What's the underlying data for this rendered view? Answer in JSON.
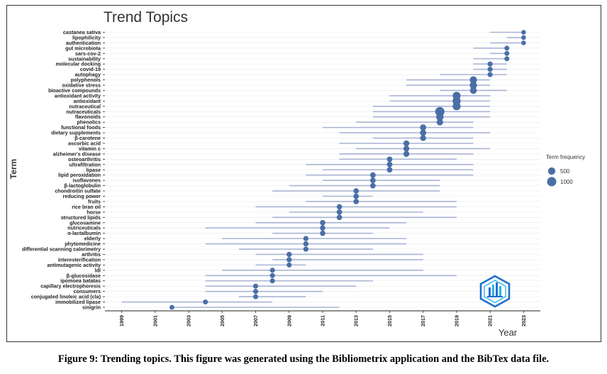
{
  "caption": "Figure 9: Trending topics. This figure was generated using the Bibliometrix application and the BibTex data file.",
  "colors": {
    "segment": "#a9b3d3",
    "point": "#4a6ea6",
    "grid": "#ebebeb",
    "axis": "#222222",
    "logo_blue": "#1f6fd1",
    "logo_cyan": "#2db4e6"
  },
  "logo": {
    "icon": "bibliometrix-logo-icon"
  },
  "chart_data": {
    "type": "scatter",
    "title": "Trend Topics",
    "xlabel": "Year",
    "ylabel": "Term",
    "xlim": [
      1998,
      2024
    ],
    "x_ticks": [
      "1999",
      "2001",
      "2003",
      "2005",
      "2007",
      "2009",
      "2011",
      "2013",
      "2015",
      "2017",
      "2019",
      "2021",
      "2023"
    ],
    "legend": {
      "title": "Term frequency",
      "position": "right",
      "entries": [
        {
          "label": "500",
          "value": 500
        },
        {
          "label": "1000",
          "value": 1000
        }
      ]
    },
    "grid": true,
    "terms": [
      {
        "term": "castanea sativa",
        "start": 2021,
        "median": 2023,
        "end": 2023,
        "freq": 100
      },
      {
        "term": "lipophilicity",
        "start": 2022,
        "median": 2023,
        "end": 2023,
        "freq": 100
      },
      {
        "term": "authentication",
        "start": 2021,
        "median": 2023,
        "end": 2023,
        "freq": 100
      },
      {
        "term": "gut microbiota",
        "start": 2020,
        "median": 2022,
        "end": 2022,
        "freq": 130
      },
      {
        "term": "sars-cov-2",
        "start": 2021,
        "median": 2022,
        "end": 2022,
        "freq": 130
      },
      {
        "term": "sustainability",
        "start": 2020,
        "median": 2022,
        "end": 2022,
        "freq": 130
      },
      {
        "term": "molecular docking",
        "start": 2020,
        "median": 2021,
        "end": 2022,
        "freq": 150
      },
      {
        "term": "covid-19",
        "start": 2020,
        "median": 2021,
        "end": 2022,
        "freq": 150
      },
      {
        "term": "autophagy",
        "start": 2018,
        "median": 2021,
        "end": 2022,
        "freq": 150
      },
      {
        "term": "polyphenols",
        "start": 2016,
        "median": 2020,
        "end": 2021,
        "freq": 500
      },
      {
        "term": "oxidative stress",
        "start": 2016,
        "median": 2020,
        "end": 2021,
        "freq": 500
      },
      {
        "term": "bioactive compounds",
        "start": 2018,
        "median": 2020,
        "end": 2022,
        "freq": 400
      },
      {
        "term": "antioxidant activity",
        "start": 2015,
        "median": 2019,
        "end": 2021,
        "freq": 650
      },
      {
        "term": "antioxidant",
        "start": 2015,
        "median": 2019,
        "end": 2021,
        "freq": 700
      },
      {
        "term": "nutraceutical",
        "start": 2014,
        "median": 2019,
        "end": 2021,
        "freq": 650
      },
      {
        "term": "nutraceuticals",
        "start": 2014,
        "median": 2018,
        "end": 2021,
        "freq": 1000
      },
      {
        "term": "flavonoids",
        "start": 2014,
        "median": 2018,
        "end": 2021,
        "freq": 550
      },
      {
        "term": "phenolics",
        "start": 2013,
        "median": 2018,
        "end": 2020,
        "freq": 350
      },
      {
        "term": "functional foods",
        "start": 2011,
        "median": 2017,
        "end": 2020,
        "freq": 300
      },
      {
        "term": "dietary supplements",
        "start": 2012,
        "median": 2017,
        "end": 2021,
        "freq": 300
      },
      {
        "term": "β-carotene",
        "start": 2014,
        "median": 2017,
        "end": 2020,
        "freq": 250
      },
      {
        "term": "ascorbic acid",
        "start": 2012,
        "median": 2016,
        "end": 2020,
        "freq": 250
      },
      {
        "term": "vitamin c",
        "start": 2013,
        "median": 2016,
        "end": 2021,
        "freq": 250
      },
      {
        "term": "alzheimer's disease",
        "start": 2012,
        "median": 2016,
        "end": 2020,
        "freq": 250
      },
      {
        "term": "osteoarthritis",
        "start": 2012,
        "median": 2015,
        "end": 2019,
        "freq": 200
      },
      {
        "term": "ultrafiltration",
        "start": 2010,
        "median": 2015,
        "end": 2020,
        "freq": 200
      },
      {
        "term": "lipase",
        "start": 2011,
        "median": 2015,
        "end": 2020,
        "freq": 200
      },
      {
        "term": "lipid peroxidation",
        "start": 2010,
        "median": 2014,
        "end": 2020,
        "freq": 200
      },
      {
        "term": "isoflavones",
        "start": 2011,
        "median": 2014,
        "end": 2018,
        "freq": 200
      },
      {
        "term": "β-lactoglobulin",
        "start": 2009,
        "median": 2014,
        "end": 2018,
        "freq": 200
      },
      {
        "term": "chondroitin sulfate",
        "start": 2008,
        "median": 2013,
        "end": 2018,
        "freq": 180
      },
      {
        "term": "reducing power",
        "start": 2011,
        "median": 2013,
        "end": 2014,
        "freq": 180
      },
      {
        "term": "fruits",
        "start": 2010,
        "median": 2013,
        "end": 2019,
        "freq": 180
      },
      {
        "term": "rice bran oil",
        "start": 2007,
        "median": 2012,
        "end": 2019,
        "freq": 180
      },
      {
        "term": "horse",
        "start": 2009,
        "median": 2012,
        "end": 2017,
        "freq": 180
      },
      {
        "term": "structured lipids",
        "start": 2008,
        "median": 2012,
        "end": 2019,
        "freq": 180
      },
      {
        "term": "glucosamine",
        "start": 2007,
        "median": 2011,
        "end": 2016,
        "freq": 180
      },
      {
        "term": "nutriceuticals",
        "start": 2004,
        "median": 2011,
        "end": 2015,
        "freq": 180
      },
      {
        "term": "α-lactalbumin",
        "start": 2008,
        "median": 2011,
        "end": 2014,
        "freq": 180
      },
      {
        "term": "elderly",
        "start": 2005,
        "median": 2010,
        "end": 2016,
        "freq": 160
      },
      {
        "term": "phytomedicine",
        "start": 2004,
        "median": 2010,
        "end": 2016,
        "freq": 160
      },
      {
        "term": "differential scanning calorimetry",
        "start": 2006,
        "median": 2010,
        "end": 2014,
        "freq": 160
      },
      {
        "term": "arthritis",
        "start": 2007,
        "median": 2009,
        "end": 2017,
        "freq": 160
      },
      {
        "term": "interesterification",
        "start": 2008,
        "median": 2009,
        "end": 2017,
        "freq": 160
      },
      {
        "term": "antimutagenic activity",
        "start": 2007,
        "median": 2009,
        "end": 2010,
        "freq": 140
      },
      {
        "term": "ldl",
        "start": 2005,
        "median": 2008,
        "end": 2017,
        "freq": 140
      },
      {
        "term": "β-glucosidase",
        "start": 2004,
        "median": 2008,
        "end": 2019,
        "freq": 140
      },
      {
        "term": "ipomoea batatas",
        "start": 2004,
        "median": 2008,
        "end": 2014,
        "freq": 140
      },
      {
        "term": "capillary electrophoresis",
        "start": 2004,
        "median": 2007,
        "end": 2013,
        "freq": 140
      },
      {
        "term": "consumers",
        "start": 2004,
        "median": 2007,
        "end": 2011,
        "freq": 140
      },
      {
        "term": "conjugated linoleic acid (cla)",
        "start": 2006,
        "median": 2007,
        "end": 2010,
        "freq": 140
      },
      {
        "term": "immobilized lipase",
        "start": 1999,
        "median": 2004,
        "end": 2008,
        "freq": 130
      },
      {
        "term": "sinigrin",
        "start": 2002,
        "median": 2002,
        "end": 2012,
        "freq": 120
      }
    ]
  }
}
